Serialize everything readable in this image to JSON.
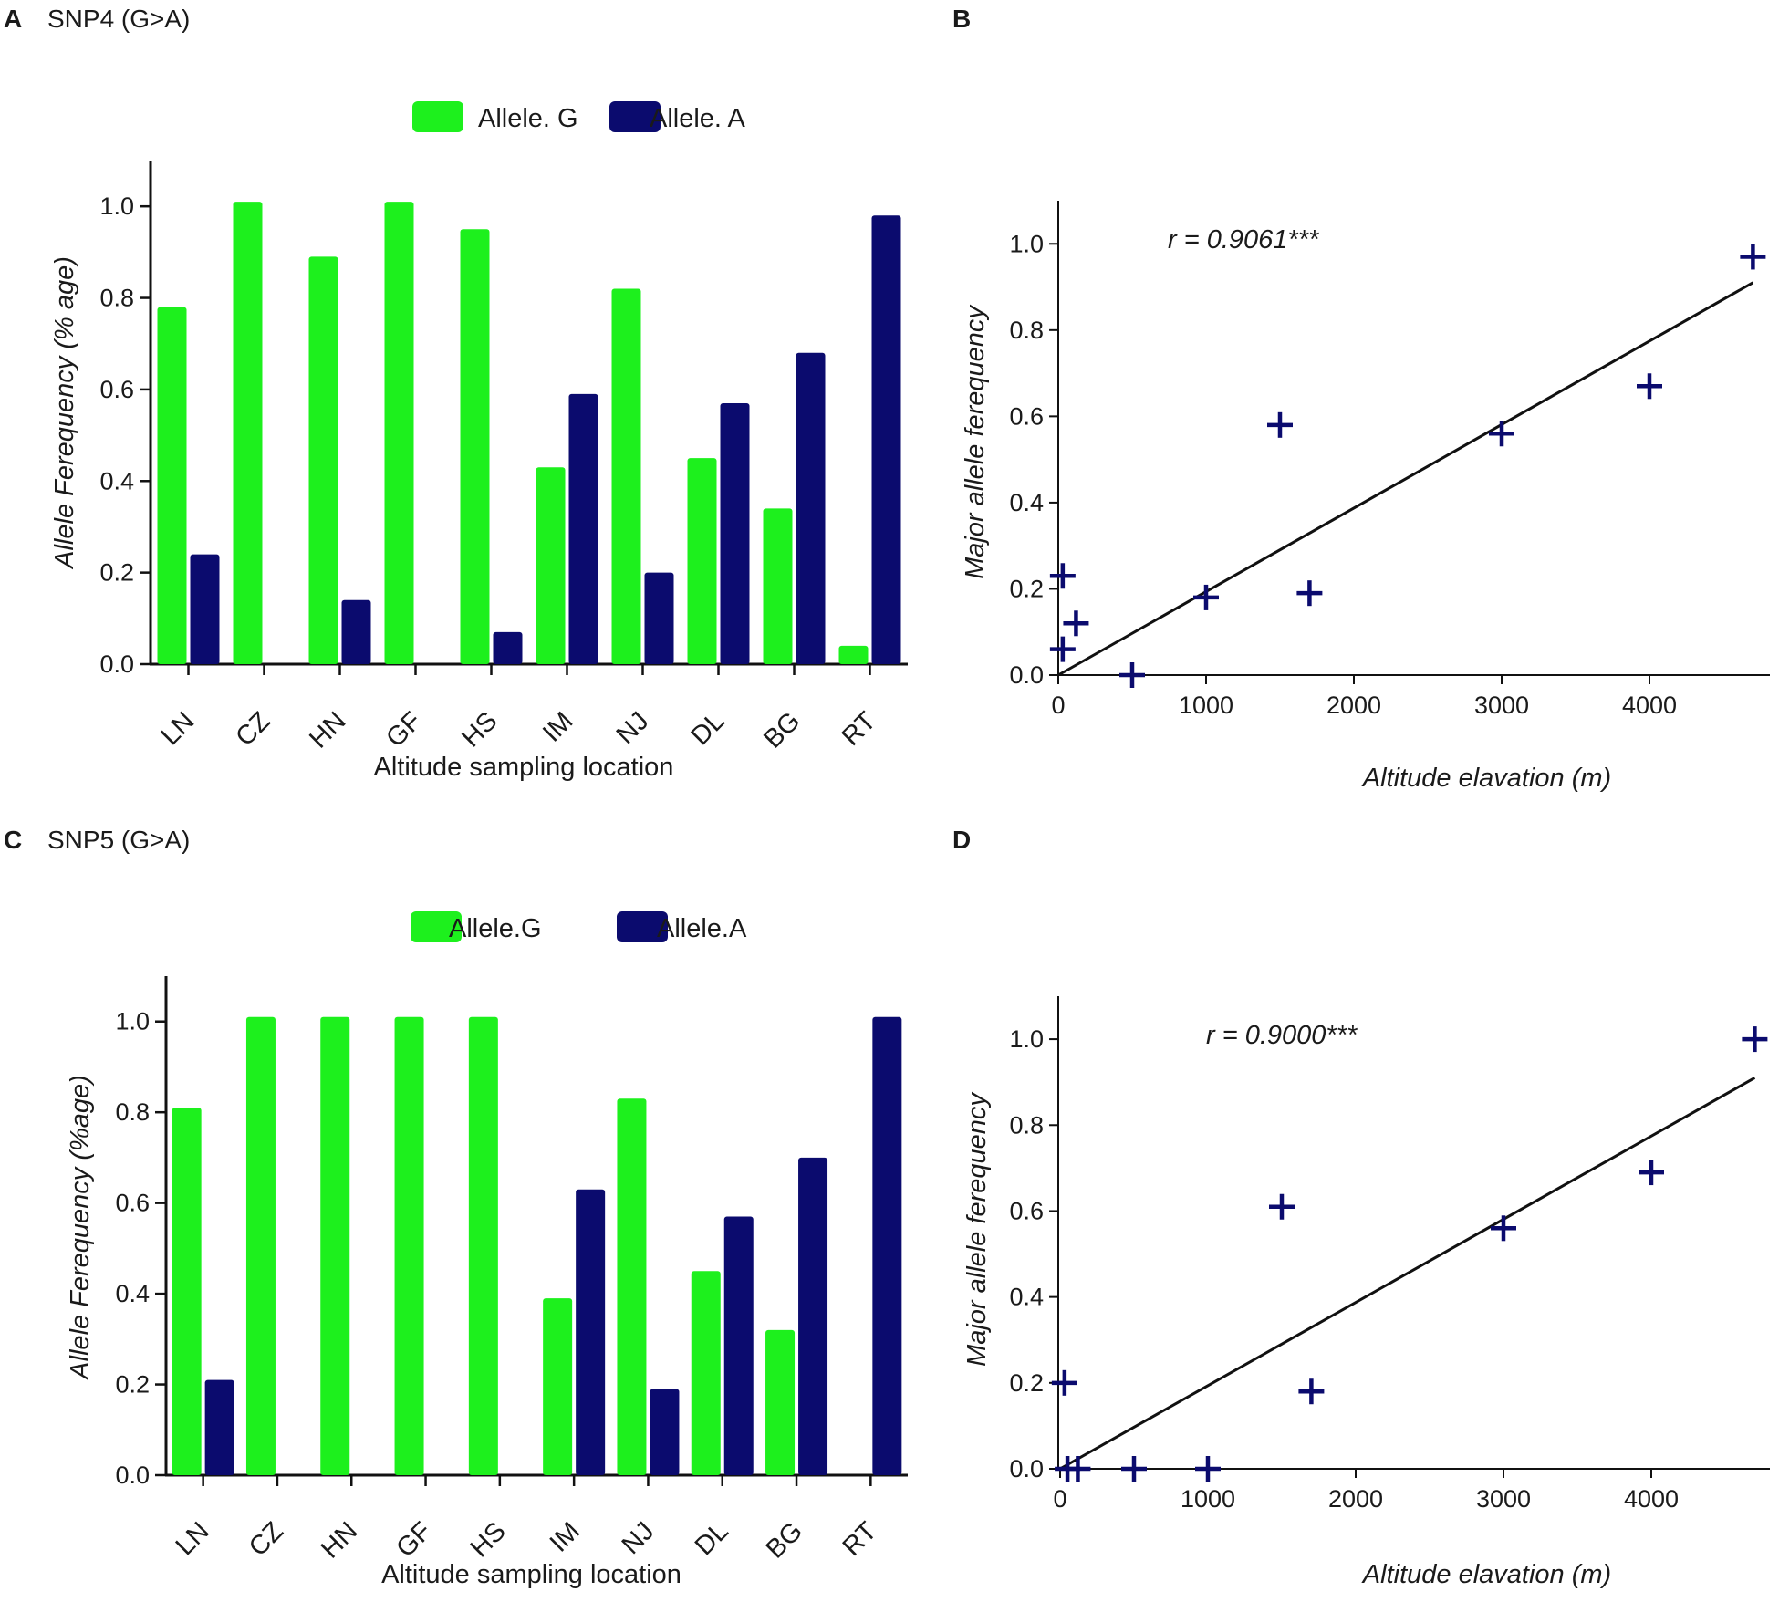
{
  "panels": [
    {
      "label": "A",
      "title": "SNP4 (G>A)"
    },
    {
      "label": "B",
      "title": ""
    },
    {
      "label": "C",
      "title": "SNP5 (G>A)"
    },
    {
      "label": "D",
      "title": ""
    }
  ],
  "chart_data": [
    {
      "type": "bar",
      "panel": "A",
      "categories": [
        "LN",
        "CZ",
        "HN",
        "GF",
        "HS",
        "IM",
        "NJ",
        "DL",
        "BG",
        "RT"
      ],
      "series": [
        {
          "name": "Allele. G",
          "color": "#1df01d",
          "values": [
            0.78,
            1.01,
            0.89,
            1.01,
            0.95,
            0.43,
            0.82,
            0.45,
            0.34,
            0.04
          ]
        },
        {
          "name": "Allele. A",
          "color": "#0b0b6e",
          "values": [
            0.24,
            0.0,
            0.14,
            0.0,
            0.07,
            0.59,
            0.2,
            0.57,
            0.68,
            0.98
          ]
        }
      ],
      "xlabel": "Altitude sampling  location",
      "ylabel": "Allele Ferequency (% age)",
      "ylim": [
        0,
        1.1
      ],
      "yticks": [
        "0.0",
        "0.2",
        "0.4",
        "0.6",
        "0.8",
        "1.0"
      ]
    },
    {
      "type": "scatter",
      "panel": "B",
      "points": [
        [
          30,
          0.23
        ],
        [
          30,
          0.06
        ],
        [
          120,
          0.12
        ],
        [
          500,
          0.0
        ],
        [
          1000,
          0.18
        ],
        [
          1500,
          0.58
        ],
        [
          1700,
          0.19
        ],
        [
          3000,
          0.56
        ],
        [
          4000,
          0.67
        ],
        [
          4700,
          0.97
        ]
      ],
      "line": {
        "x0": 0,
        "y0": 0.0,
        "x1": 4700,
        "y1": 0.91
      },
      "annotation": "r = 0.9061***",
      "xlabel": "Altitude elavation (m)",
      "ylabel": "Major allele ferequency",
      "xlim": [
        0,
        4800
      ],
      "ylim": [
        0,
        1.1
      ],
      "xticks": [
        "0",
        "1000",
        "2000",
        "3000",
        "4000"
      ],
      "yticks": [
        "0.0",
        "0.2",
        "0.4",
        "0.6",
        "0.8",
        "1.0"
      ],
      "marker_color": "#0b0b6e"
    },
    {
      "type": "bar",
      "panel": "C",
      "categories": [
        "LN",
        "CZ",
        "HN",
        "GF",
        "HS",
        "IM",
        "NJ",
        "DL",
        "BG",
        "RT"
      ],
      "series": [
        {
          "name": "Allele.G",
          "color": "#1df01d",
          "values": [
            0.81,
            1.01,
            1.01,
            1.01,
            1.01,
            0.39,
            0.83,
            0.45,
            0.32,
            0.0
          ]
        },
        {
          "name": "Allele.A",
          "color": "#0b0b6e",
          "values": [
            0.21,
            0.0,
            0.0,
            0.0,
            0.0,
            0.63,
            0.19,
            0.57,
            0.7,
            1.01
          ]
        }
      ],
      "xlabel": "Altitude sampling  location",
      "ylabel": "Allele Ferequency (%age)",
      "ylim": [
        0,
        1.1
      ],
      "yticks": [
        "0.0",
        "0.2",
        "0.4",
        "0.6",
        "0.8",
        "1.0"
      ]
    },
    {
      "type": "scatter",
      "panel": "D",
      "points": [
        [
          30,
          0.2
        ],
        [
          50,
          0.0
        ],
        [
          120,
          0.0
        ],
        [
          500,
          0.0
        ],
        [
          1000,
          0.0
        ],
        [
          1500,
          0.61
        ],
        [
          1700,
          0.18
        ],
        [
          3000,
          0.56
        ],
        [
          4000,
          0.69
        ],
        [
          4700,
          1.0
        ]
      ],
      "line": {
        "x0": 0,
        "y0": 0.0,
        "x1": 4700,
        "y1": 0.91
      },
      "annotation": "r = 0.9000***",
      "xlabel": "Altitude elavation (m)",
      "ylabel": "Major allele ferequency",
      "xlim": [
        0,
        4800
      ],
      "ylim": [
        0,
        1.1
      ],
      "xticks": [
        "0",
        "1000",
        "2000",
        "3000",
        "4000"
      ],
      "yticks": [
        "0.0",
        "0.2",
        "0.4",
        "0.6",
        "0.8",
        "1.0"
      ],
      "marker_color": "#0b0b6e"
    }
  ]
}
